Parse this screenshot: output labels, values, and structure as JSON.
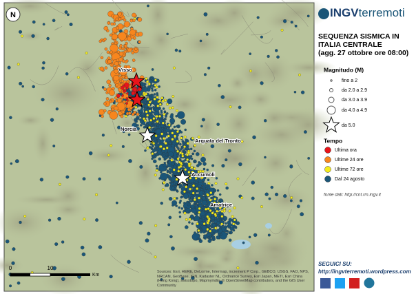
{
  "logo": {
    "bold": "INGV",
    "light": "terremoti"
  },
  "title_lines": [
    "SEQUENZA SISMICA IN",
    "ITALIA CENTRALE",
    "(agg. 27 ottobre ore 08:00)"
  ],
  "legend": {
    "magnitude_title": "Magnitudo (M)",
    "magnitude_items": [
      "fino a 2",
      "da 2.0 a 2.9",
      "da 3.0 a 3.9",
      "da 4.0 a 4.9",
      "da 5.0"
    ],
    "time_title": "Tempo",
    "time_items": [
      {
        "label": "Ultima ora",
        "color": "#e8141a"
      },
      {
        "label": "Ultime 24 ore",
        "color": "#f7861e"
      },
      {
        "label": "Ultime 72 ore",
        "color": "#f4ec1c"
      },
      {
        "label": "Dal 24 agosto",
        "color": "#1b5678"
      }
    ]
  },
  "source": "fonte dati: http://cnt.rm.ingv.it",
  "follow": {
    "title": "SEGUICI SU:",
    "url": "http://ingvterremoti.wordpress.com"
  },
  "map": {
    "places": [
      "Visso",
      "Norcia",
      "Arquata del Tronto",
      "Accumoli",
      "Amatrice"
    ],
    "scale": {
      "ticks": [
        "0",
        "10"
      ],
      "unit": "Km"
    },
    "attribution": "Sources: Esri, HERE, DeLorme, Intermap, increment P Corp., GEBCO, USGS, FAO, NPS, NRCAN, GeoBase, IGN, Kadaster NL, Ordnance Survey, Esri Japan, METI, Esri China (Hong Kong), swisstopo, Mapmyindia, © OpenStreetMap contributors, and the GIS User Community"
  }
}
